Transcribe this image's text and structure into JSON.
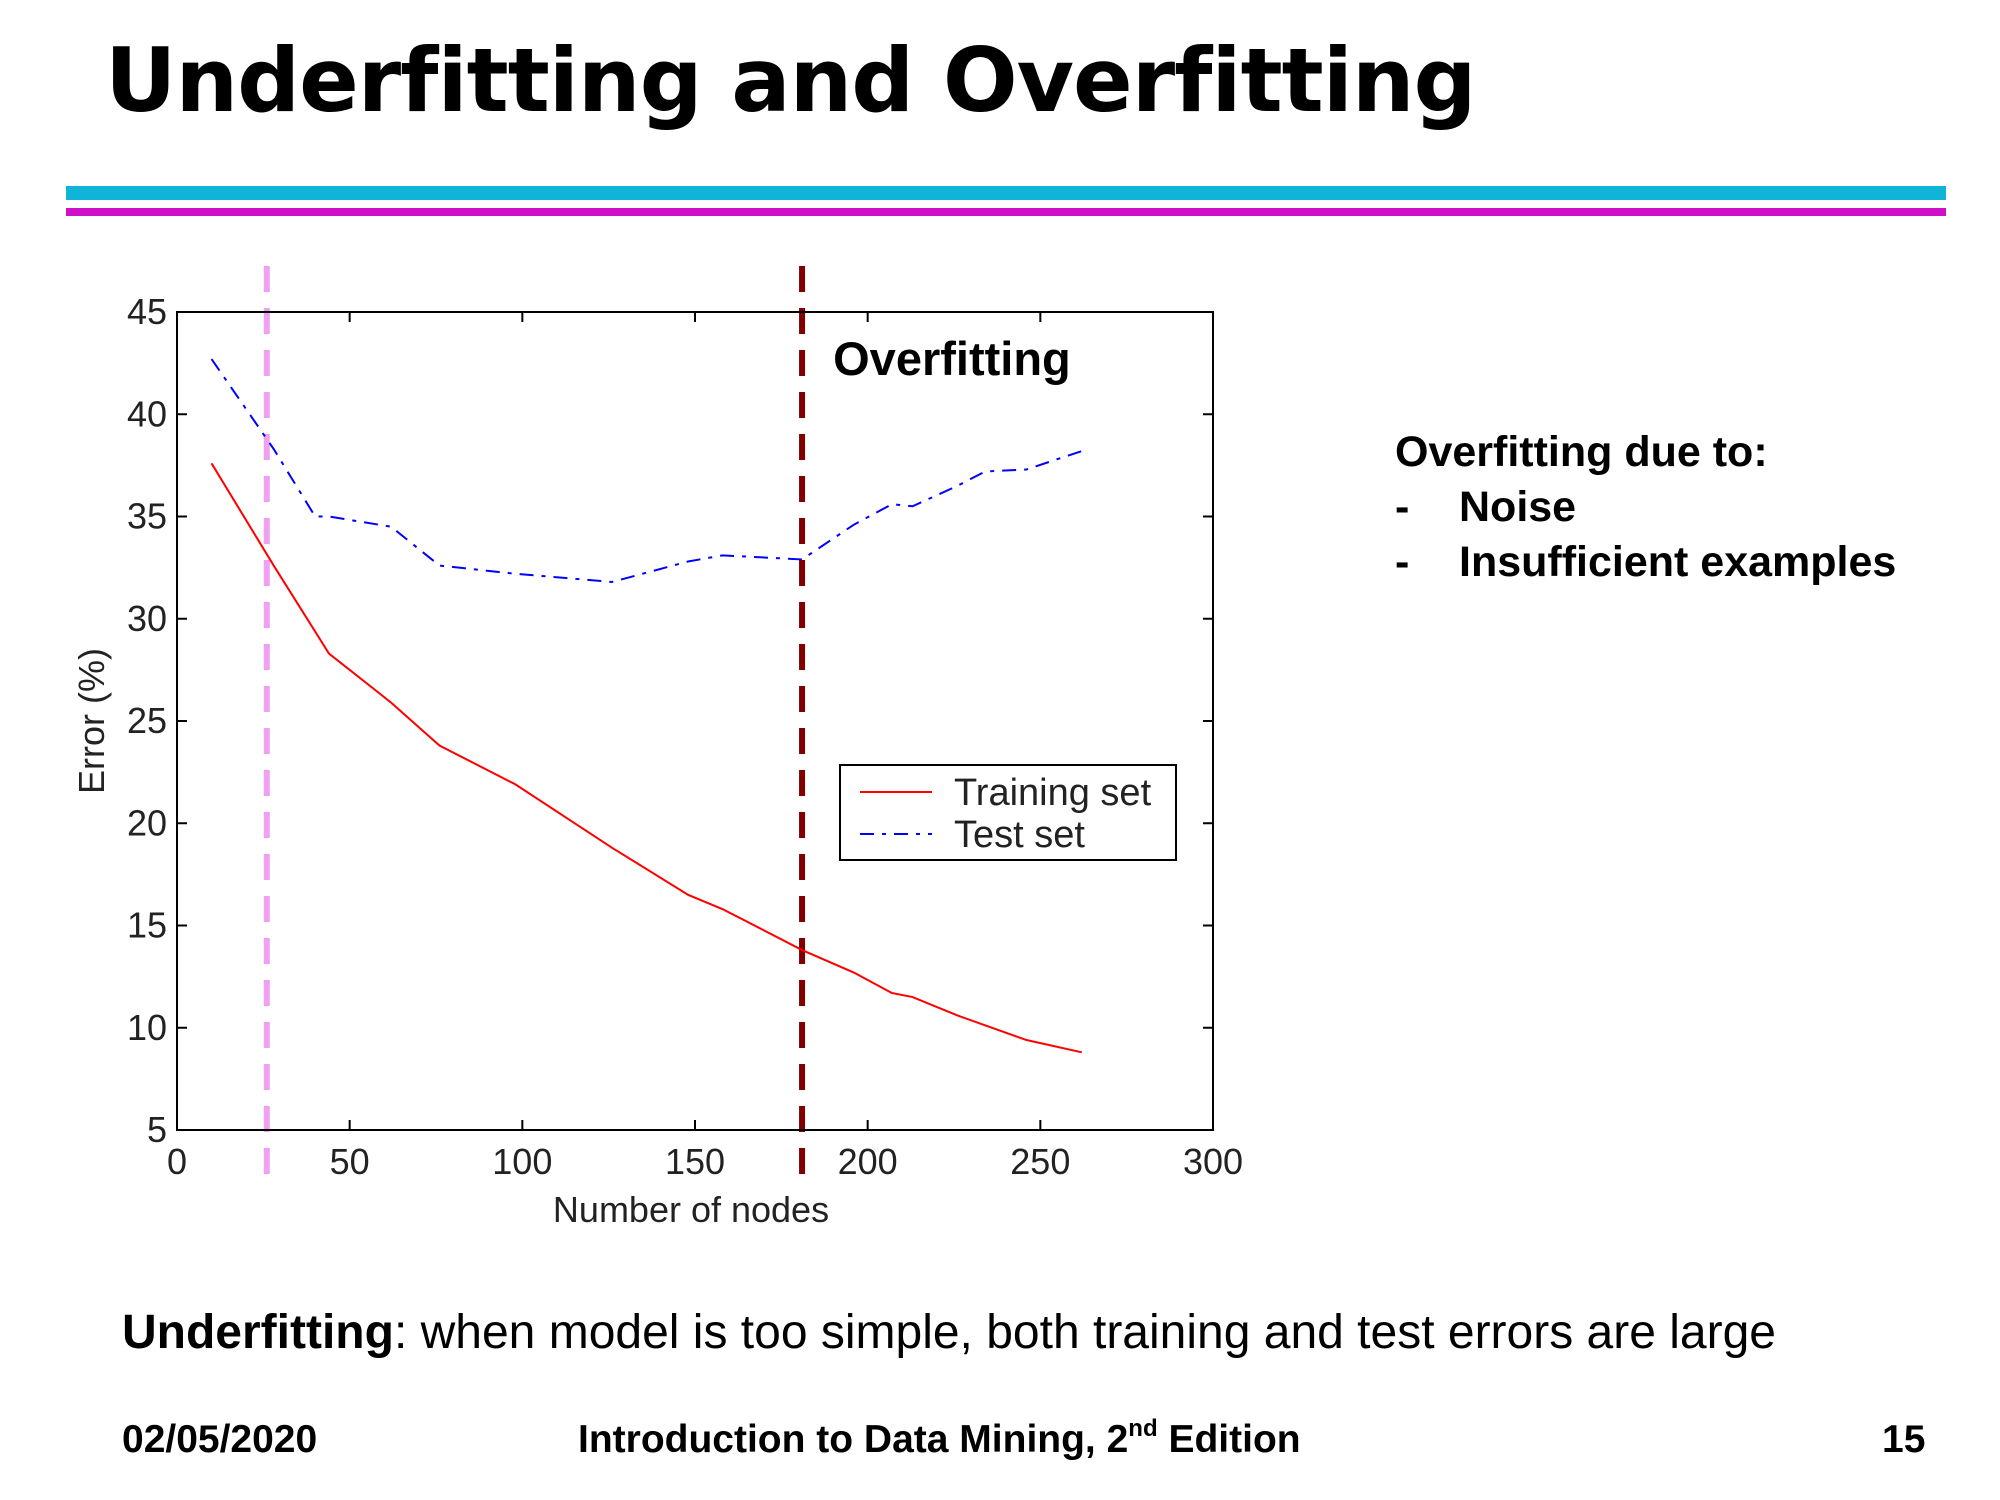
{
  "slide": {
    "title": "Underfitting and Overfitting",
    "colors": {
      "top_rule": "#10b4d8",
      "bottom_rule": "#d010c8"
    }
  },
  "bullets": {
    "heading": "Overfitting due to:",
    "items": [
      {
        "marker": "-",
        "text": "Noise"
      },
      {
        "marker": "-",
        "text": "Insufficient examples"
      }
    ]
  },
  "underfitting_note": {
    "term": "Underfitting",
    "rest": ": when model is too simple, both training and test errors are large"
  },
  "footer": {
    "date": "02/05/2020",
    "course_pre": "Introduction to Data Mining, 2",
    "course_sup": "nd",
    "course_post": " Edition",
    "page": "15"
  },
  "chart_data": {
    "type": "line",
    "xlabel": "Number of nodes",
    "ylabel": "Error (%)",
    "xlim": [
      0,
      300
    ],
    "ylim": [
      5,
      45
    ],
    "xticks": [
      0,
      50,
      100,
      150,
      200,
      250,
      300
    ],
    "yticks": [
      5,
      10,
      15,
      20,
      25,
      30,
      35,
      40,
      45
    ],
    "legend_position": "middle-right",
    "series": [
      {
        "name": "Training set",
        "color": "#ff0000",
        "style": "solid",
        "x": [
          10,
          28,
          44,
          62,
          76,
          98,
          126,
          148,
          158,
          181,
          196,
          207,
          213,
          226,
          246,
          262
        ],
        "y": [
          37.6,
          32.6,
          28.3,
          25.9,
          23.8,
          21.9,
          18.8,
          16.5,
          15.8,
          13.8,
          12.7,
          11.7,
          11.5,
          10.6,
          9.4,
          8.8
        ]
      },
      {
        "name": "Test set",
        "color": "#0000ff",
        "style": "dashdot",
        "x": [
          10,
          28,
          40,
          44,
          62,
          76,
          98,
          126,
          148,
          158,
          181,
          196,
          207,
          213,
          226,
          234,
          246,
          262
        ],
        "y": [
          42.7,
          38.3,
          35.0,
          35.0,
          34.5,
          32.6,
          32.2,
          31.8,
          32.8,
          33.1,
          32.9,
          34.6,
          35.6,
          35.5,
          36.5,
          37.2,
          37.3,
          38.2
        ]
      }
    ],
    "vertical_markers": [
      {
        "x": 26,
        "color": "#f0a0f0",
        "style": "dashed"
      },
      {
        "x": 181,
        "color": "#800000",
        "style": "dashed"
      }
    ],
    "annotations": [
      {
        "text": "Overfitting"
      }
    ]
  }
}
